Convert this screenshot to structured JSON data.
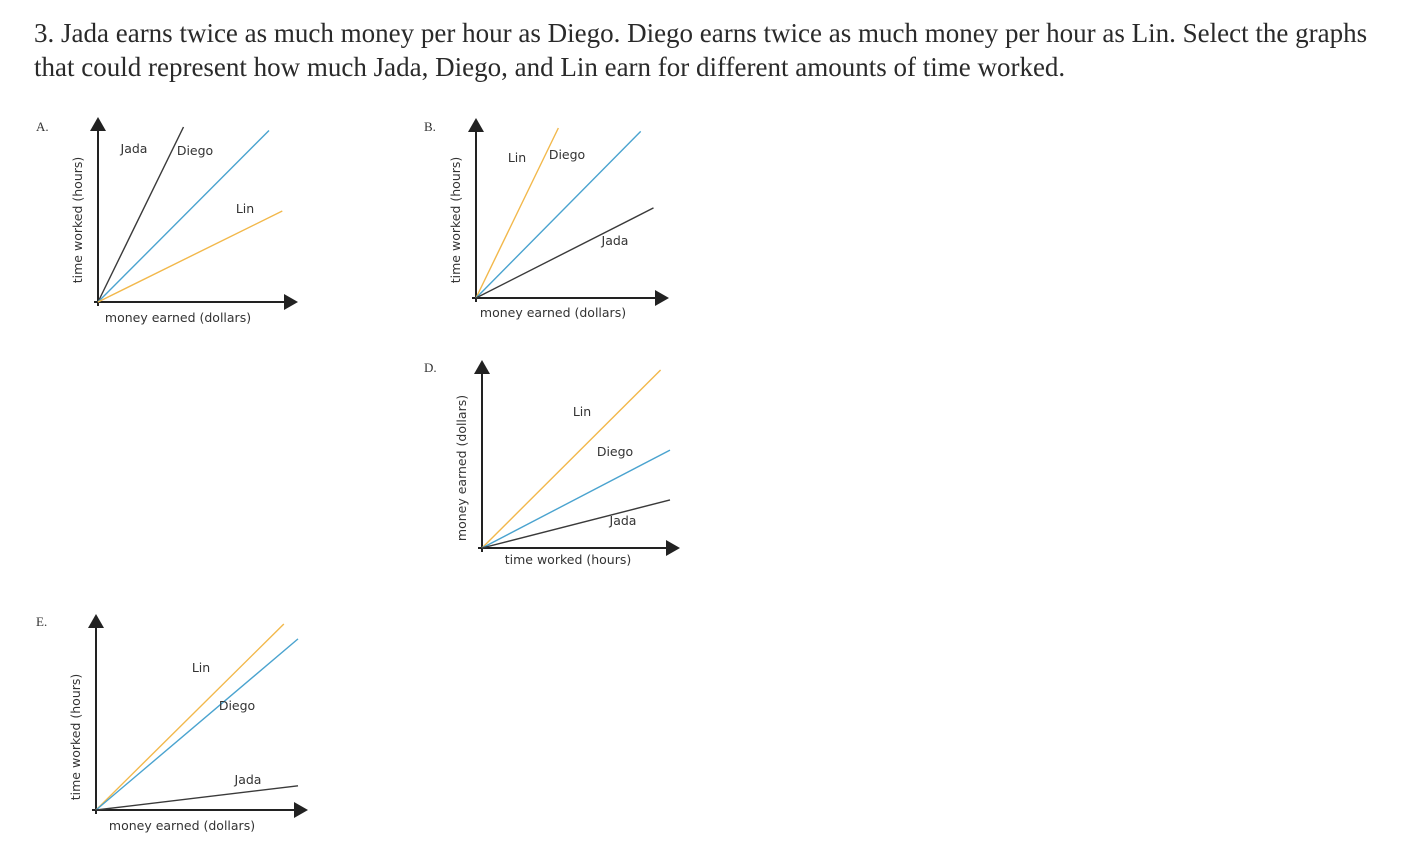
{
  "question": {
    "text": "3. Jada earns twice as much money per hour as Diego. Diego earns twice as much money per hour as Lin. Select the graphs that could represent how much Jada, Diego, and Lin earn for different amounts of time worked."
  },
  "colors": {
    "jada": "#3a3a3a",
    "diego": "#4aa3cf",
    "lin": "#f2b84b",
    "axis": "#222222"
  },
  "graphs": [
    {
      "letter": "A.",
      "xlabel": "money earned (dollars)",
      "ylabel": "time worked (hours)",
      "lines": [
        {
          "name": "Jada",
          "label": "Jada",
          "color_key": "jada",
          "end": [
            0.45,
            1.0
          ]
        },
        {
          "name": "Diego",
          "label": "Diego",
          "color_key": "diego",
          "end": [
            0.9,
            0.98
          ]
        },
        {
          "name": "Lin",
          "label": "Lin",
          "color_key": "lin",
          "end": [
            0.97,
            0.52
          ]
        }
      ]
    },
    {
      "letter": "B.",
      "xlabel": "money earned (dollars)",
      "ylabel": "time worked (hours)",
      "lines": [
        {
          "name": "Lin",
          "label": "Lin",
          "color_key": "lin",
          "end": [
            0.45,
            1.0
          ]
        },
        {
          "name": "Diego",
          "label": "Diego",
          "color_key": "diego",
          "end": [
            0.9,
            0.98
          ]
        },
        {
          "name": "Jada",
          "label": "Jada",
          "color_key": "jada",
          "end": [
            0.97,
            0.53
          ]
        }
      ]
    },
    {
      "letter": "D.",
      "xlabel": "time worked (hours)",
      "ylabel": "money earned (dollars)",
      "lines": [
        {
          "name": "Lin",
          "label": "Lin",
          "color_key": "lin",
          "end": [
            0.95,
            1.0
          ]
        },
        {
          "name": "Diego",
          "label": "Diego",
          "color_key": "diego",
          "end": [
            1.0,
            0.55
          ]
        },
        {
          "name": "Jada",
          "label": "Jada",
          "color_key": "jada",
          "end": [
            1.0,
            0.27
          ]
        }
      ]
    },
    {
      "letter": "E.",
      "xlabel": "money earned (dollars)",
      "ylabel": "time worked (hours)",
      "lines": [
        {
          "name": "Lin",
          "label": "Lin",
          "color_key": "lin",
          "end": [
            0.93,
            1.0
          ]
        },
        {
          "name": "Diego",
          "label": "Diego",
          "color_key": "diego",
          "end": [
            1.0,
            0.92
          ]
        },
        {
          "name": "Jada",
          "label": "Jada",
          "color_key": "jada",
          "end": [
            1.0,
            0.13
          ]
        }
      ]
    }
  ]
}
